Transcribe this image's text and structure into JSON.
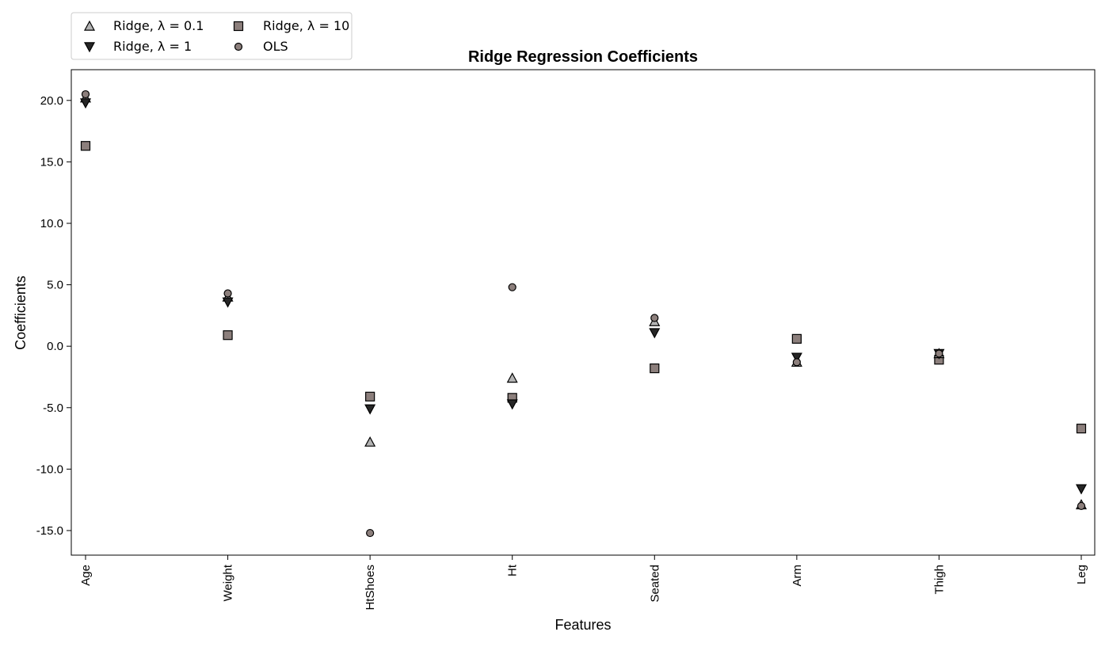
{
  "chart_data": {
    "type": "scatter",
    "title": "Ridge Regression Coefficients",
    "xlabel": "Features",
    "ylabel": "Coefficients",
    "categories": [
      "Age",
      "Weight",
      "HtShoes",
      "Ht",
      "Seated",
      "Arm",
      "Thigh",
      "Leg"
    ],
    "ylim": [
      -17.0,
      22.5
    ],
    "yticks": [
      20.0,
      15.0,
      10.0,
      5.0,
      0.0,
      -5.0,
      -10.0,
      -15.0
    ],
    "ytick_labels": [
      "20.0",
      "15.0",
      "10.0",
      "5.0",
      "0.0",
      "-5.0",
      "-10.0",
      "-15.0"
    ],
    "grid": false,
    "legend_position": "top-left (above axes)",
    "series": [
      {
        "name": "Ridge, λ = 0.1",
        "marker": "triangle-up",
        "color": "#b3b3b3",
        "values": [
          20.2,
          4.0,
          -7.8,
          -2.6,
          2.0,
          -1.3,
          -0.6,
          -12.9
        ]
      },
      {
        "name": "Ridge, λ = 1",
        "marker": "triangle-down",
        "color": "#262626",
        "values": [
          19.8,
          3.6,
          -5.1,
          -4.7,
          1.1,
          -0.9,
          -0.6,
          -11.6
        ]
      },
      {
        "name": "Ridge, λ = 10",
        "marker": "square",
        "color": "#8c7f7c",
        "values": [
          16.3,
          0.9,
          -4.1,
          -4.2,
          -1.8,
          0.6,
          -1.1,
          -6.7
        ]
      },
      {
        "name": "OLS",
        "marker": "circle",
        "color": "#8c7f7c",
        "values": [
          20.5,
          4.3,
          -15.2,
          4.8,
          2.3,
          -1.3,
          -0.6,
          -13.0
        ]
      }
    ]
  }
}
